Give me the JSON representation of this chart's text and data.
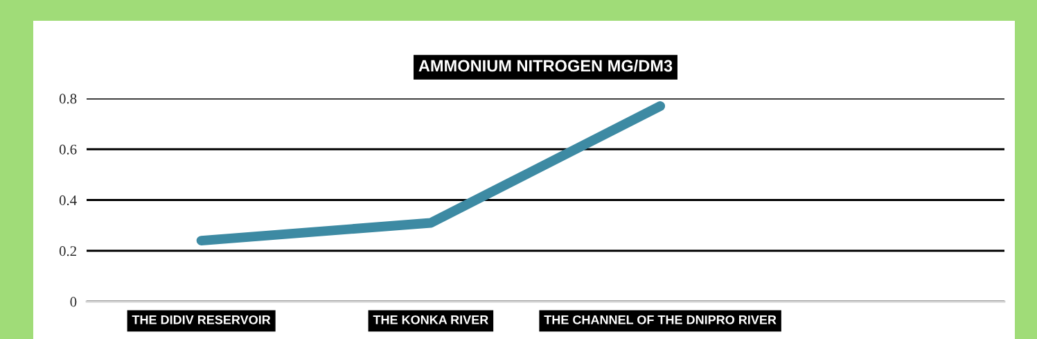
{
  "chart_data": {
    "type": "line",
    "title": "AMMONIUM NITROGEN MG/DM3",
    "categories": [
      "THE DIDIV RESERVOIR",
      "THE KONKA RIVER",
      "THE CHANNEL OF THE DNIPRO RIVER",
      null
    ],
    "series": [
      {
        "color": "#3d8aa3",
        "values": [
          0.24,
          0.31,
          0.77,
          null
        ]
      }
    ],
    "ylim": [
      0,
      0.8
    ],
    "yticks": [
      0,
      0.2,
      0.4,
      0.6,
      0.8
    ],
    "grid": "y",
    "legend": false,
    "marker": "none",
    "line_style": "solid"
  }
}
